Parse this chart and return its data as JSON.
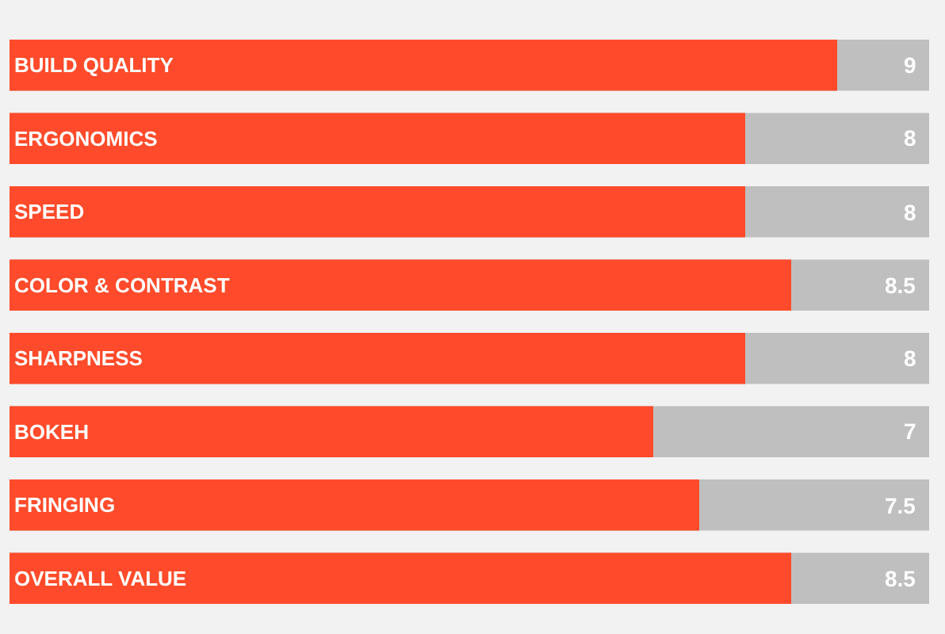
{
  "chart_data": {
    "type": "bar",
    "orientation": "horizontal",
    "categories": [
      "BUILD QUALITY",
      "ERGONOMICS",
      "SPEED",
      "COLOR & CONTRAST",
      "SHARPNESS",
      "BOKEH",
      "FRINGING",
      "OVERALL VALUE"
    ],
    "values": [
      9,
      8,
      8,
      8.5,
      8,
      7,
      7.5,
      8.5
    ],
    "color": "#ff4b2b",
    "xlim": [
      0,
      10
    ],
    "data_labels": true,
    "tick_labels": false,
    "grid": false,
    "legend": false
  }
}
